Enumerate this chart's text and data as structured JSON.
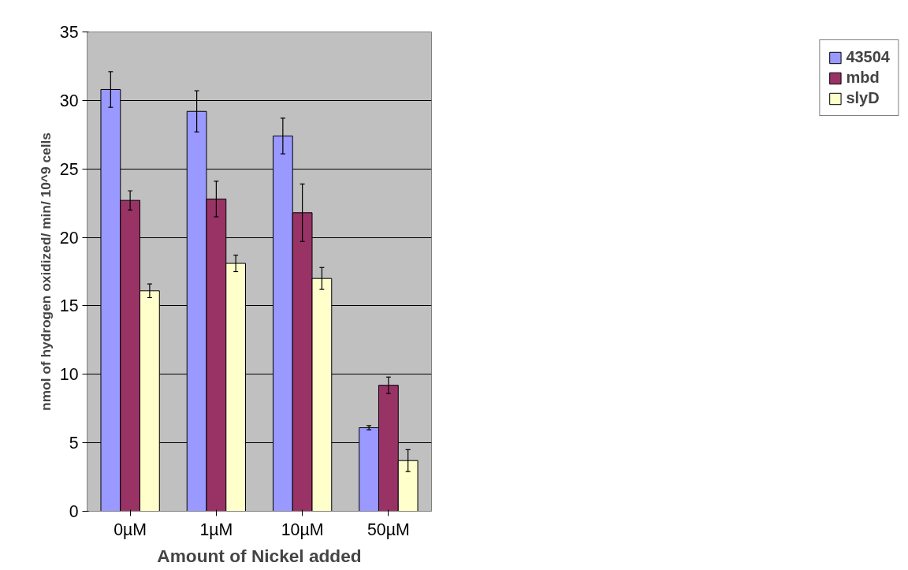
{
  "chart_data": {
    "type": "bar",
    "xlabel": "Amount of Nickel added",
    "ylabel": "nmol of hydrogen oxidized/ min/ 10^9 cells",
    "categories": [
      "0µM",
      "1µM",
      "10µM",
      "50µM"
    ],
    "series": [
      {
        "name": "43504",
        "color": "#9999ff",
        "values": [
          30.8,
          29.2,
          27.4,
          6.1
        ],
        "errors": [
          1.3,
          1.5,
          1.3,
          0.15
        ]
      },
      {
        "name": "mbd",
        "color": "#993366",
        "values": [
          22.7,
          22.8,
          21.8,
          9.2
        ],
        "errors": [
          0.7,
          1.3,
          2.1,
          0.6
        ]
      },
      {
        "name": "slyD",
        "color": "#ffffcc",
        "values": [
          16.1,
          18.1,
          17.0,
          3.7
        ],
        "errors": [
          0.5,
          0.6,
          0.8,
          0.8
        ]
      }
    ],
    "ylim": [
      0,
      35
    ],
    "yticks": [
      0,
      5,
      10,
      15,
      20,
      25,
      30,
      35
    ],
    "grid": "y",
    "legend": "right"
  }
}
